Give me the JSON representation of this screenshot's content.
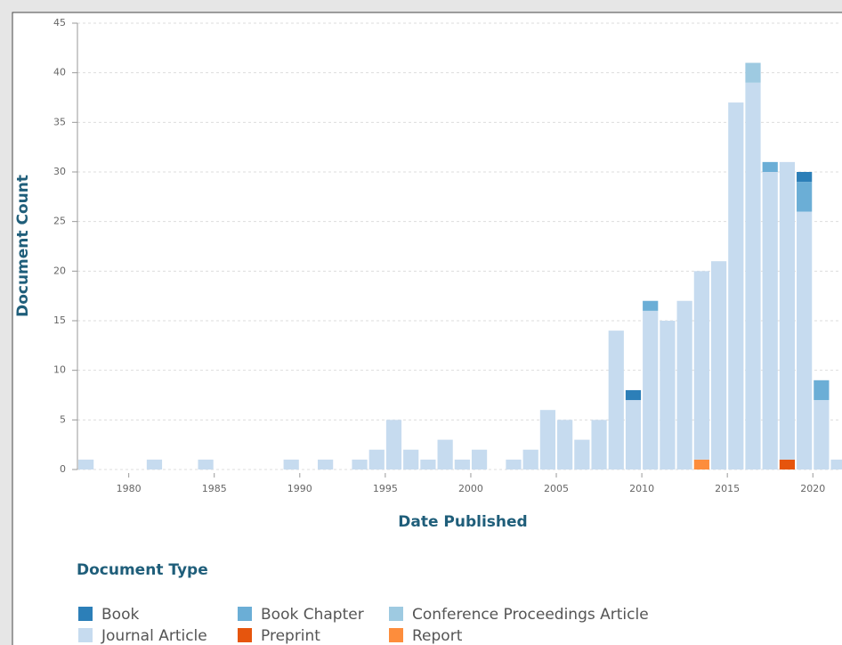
{
  "chart_data": {
    "type": "stacked_bar",
    "xlabel": "Date Published",
    "ylabel": "Document Count",
    "legend_title": "Document Type",
    "legend": "bottom",
    "grid": true,
    "x": [
      1977,
      1981,
      1984,
      1989,
      1991,
      1993,
      1994,
      1995,
      1996,
      1997,
      1998,
      1999,
      2000,
      2002,
      2003,
      2004,
      2005,
      2006,
      2007,
      2008,
      2009,
      2010,
      2011,
      2012,
      2013,
      2014,
      2015,
      2016,
      2017,
      2018,
      2019,
      2020,
      2021
    ],
    "xlim": [
      1977,
      2021.6
    ],
    "xticks": [
      1980,
      1985,
      1990,
      1995,
      2000,
      2005,
      2010,
      2015,
      2020
    ],
    "ylim": [
      0,
      45
    ],
    "yticks": [
      0,
      5,
      10,
      15,
      20,
      25,
      30,
      35,
      40,
      45
    ],
    "series": [
      {
        "name": "Book",
        "color": "#2c7fb8",
        "values": [
          0,
          0,
          0,
          0,
          0,
          0,
          0,
          0,
          0,
          0,
          0,
          0,
          0,
          0,
          0,
          0,
          0,
          0,
          0,
          0,
          1,
          0,
          0,
          0,
          0,
          0,
          0,
          0,
          0,
          0,
          1,
          0,
          0
        ]
      },
      {
        "name": "Book Chapter",
        "color": "#6baed6",
        "values": [
          0,
          0,
          0,
          0,
          0,
          0,
          0,
          0,
          0,
          0,
          0,
          0,
          0,
          0,
          0,
          0,
          0,
          0,
          0,
          0,
          0,
          1,
          0,
          0,
          0,
          0,
          0,
          0,
          1,
          0,
          3,
          2,
          0
        ]
      },
      {
        "name": "Conference Proceedings Article",
        "color": "#9ecae1",
        "values": [
          0,
          0,
          0,
          0,
          0,
          0,
          0,
          0,
          0,
          0,
          0,
          0,
          0,
          0,
          0,
          0,
          0,
          0,
          0,
          0,
          0,
          0,
          0,
          0,
          0,
          0,
          0,
          2,
          0,
          0,
          0,
          0,
          0
        ]
      },
      {
        "name": "Journal Article",
        "color": "#c6dbef",
        "values": [
          1,
          1,
          1,
          1,
          1,
          1,
          2,
          5,
          2,
          1,
          3,
          1,
          2,
          1,
          2,
          6,
          5,
          3,
          5,
          14,
          7,
          16,
          15,
          17,
          19,
          21,
          37,
          39,
          30,
          30,
          26,
          7,
          1
        ]
      },
      {
        "name": "Preprint",
        "color": "#e6550d",
        "values": [
          0,
          0,
          0,
          0,
          0,
          0,
          0,
          0,
          0,
          0,
          0,
          0,
          0,
          0,
          0,
          0,
          0,
          0,
          0,
          0,
          0,
          0,
          0,
          0,
          0,
          0,
          0,
          0,
          0,
          1,
          0,
          0,
          0
        ]
      },
      {
        "name": "Report",
        "color": "#fd8d3c",
        "values": [
          0,
          0,
          0,
          0,
          0,
          0,
          0,
          0,
          0,
          0,
          0,
          0,
          0,
          0,
          0,
          0,
          0,
          0,
          0,
          0,
          0,
          0,
          0,
          0,
          1,
          0,
          0,
          0,
          0,
          0,
          0,
          0,
          0
        ]
      }
    ]
  }
}
